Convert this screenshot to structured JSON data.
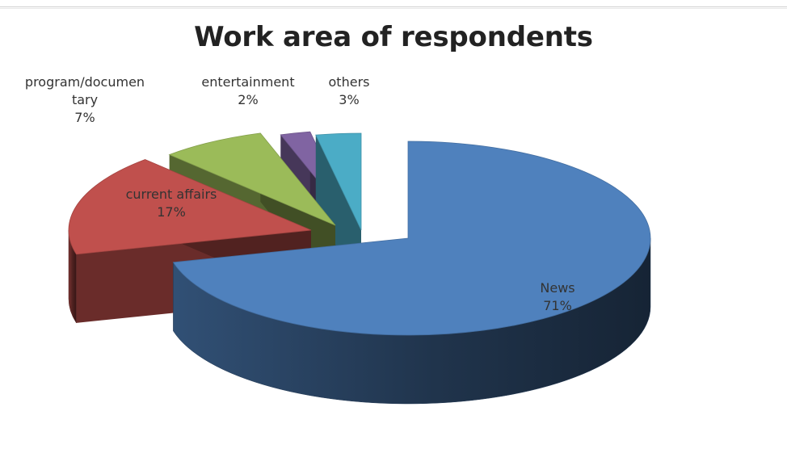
{
  "chart_data": {
    "type": "pie",
    "title": "Work area of respondents",
    "three_d": true,
    "exploded": true,
    "legend": "none",
    "slices": [
      {
        "name": "News",
        "value": 71,
        "label_lines": [
          "News",
          "71%"
        ],
        "color": "#4F81BD"
      },
      {
        "name": "current affairs",
        "value": 17,
        "label_lines": [
          "current affairs",
          "17%"
        ],
        "color": "#C0504D"
      },
      {
        "name": "program/documentary",
        "value": 7,
        "label_lines": [
          "program/documen",
          "tary",
          "7%"
        ],
        "color": "#9BBB59"
      },
      {
        "name": "entertainment",
        "value": 2,
        "label_lines": [
          "entertainment",
          "2%"
        ],
        "color": "#8064A2"
      },
      {
        "name": "others",
        "value": 3,
        "label_lines": [
          "others",
          "3%"
        ],
        "color": "#4BACC6"
      }
    ]
  }
}
